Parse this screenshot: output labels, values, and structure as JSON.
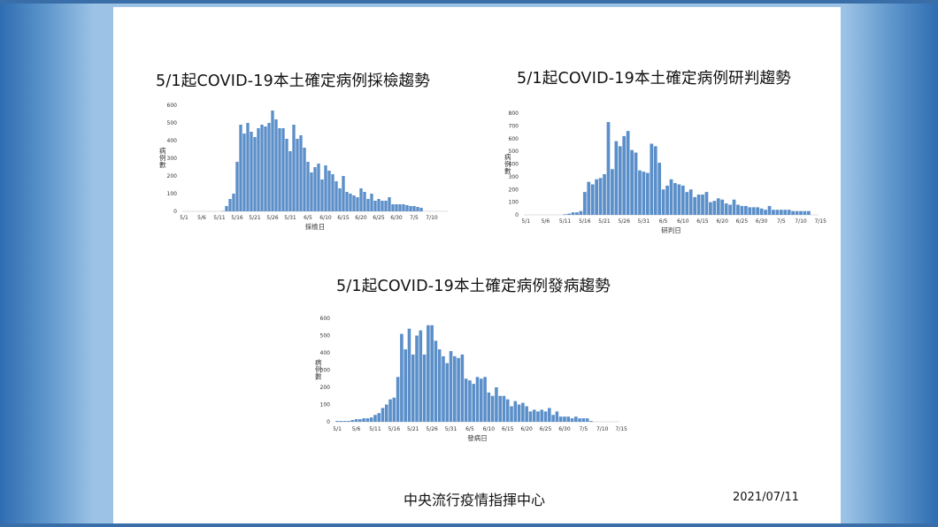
{
  "slide": {
    "organization": "中央流行疫情指揮中心",
    "date": "2021/07/11",
    "colors": {
      "bar": "#5b8fc9",
      "background": "#ffffff",
      "frame": "#9cc3e6"
    }
  },
  "chart_data": [
    {
      "type": "bar",
      "title": "5/1起COVID-19本土確定病例採檢趨勢",
      "xlabel": "採檢日",
      "ylabel": "病例數",
      "x_ticks": [
        "5/1",
        "5/6",
        "5/11",
        "5/16",
        "5/21",
        "5/26",
        "5/31",
        "6/5",
        "6/10",
        "6/15",
        "6/20",
        "6/25",
        "6/30",
        "7/5",
        "7/10"
      ],
      "y_ticks": [
        0,
        100,
        200,
        300,
        400,
        500,
        600
      ],
      "ylim": [
        0,
        600
      ],
      "x_start": "5/1",
      "values": [
        0,
        0,
        0,
        0,
        0,
        0,
        0,
        0,
        0,
        0,
        0,
        2,
        30,
        70,
        100,
        280,
        490,
        440,
        500,
        450,
        420,
        470,
        490,
        480,
        500,
        570,
        520,
        470,
        470,
        410,
        340,
        490,
        410,
        430,
        360,
        280,
        220,
        250,
        270,
        180,
        260,
        230,
        210,
        170,
        130,
        200,
        110,
        100,
        90,
        80,
        130,
        110,
        70,
        100,
        60,
        70,
        60,
        60,
        80,
        40,
        40,
        40,
        40,
        35,
        30,
        30,
        25,
        20
      ],
      "grid": false,
      "legend": "none"
    },
    {
      "type": "bar",
      "title": "5/1起COVID-19本土確定病例研判趨勢",
      "xlabel": "研判日",
      "ylabel": "病例數",
      "x_ticks": [
        "5/1",
        "5/6",
        "5/11",
        "5/16",
        "5/21",
        "5/26",
        "5/31",
        "6/5",
        "6/10",
        "6/15",
        "6/20",
        "6/25",
        "6/30",
        "7/5",
        "7/10",
        "7/15"
      ],
      "y_ticks": [
        0,
        100,
        200,
        300,
        400,
        500,
        600,
        700,
        800
      ],
      "ylim": [
        0,
        800
      ],
      "x_start": "5/1",
      "values": [
        0,
        0,
        0,
        0,
        0,
        0,
        0,
        0,
        0,
        0,
        5,
        10,
        20,
        20,
        30,
        180,
        260,
        240,
        280,
        290,
        320,
        730,
        360,
        580,
        540,
        620,
        660,
        510,
        490,
        350,
        340,
        330,
        560,
        540,
        410,
        200,
        230,
        280,
        250,
        240,
        230,
        180,
        200,
        140,
        160,
        160,
        180,
        100,
        110,
        130,
        120,
        90,
        80,
        120,
        80,
        70,
        70,
        60,
        60,
        60,
        50,
        40,
        70,
        40,
        40,
        40,
        40,
        40,
        30,
        30,
        30,
        30,
        30
      ],
      "grid": false,
      "legend": "none"
    },
    {
      "type": "bar",
      "title": "5/1起COVID-19本土確定病例發病趨勢",
      "xlabel": "發病日",
      "ylabel": "病例數",
      "x_ticks": [
        "5/1",
        "5/6",
        "5/11",
        "5/16",
        "5/21",
        "5/26",
        "5/31",
        "6/5",
        "6/10",
        "6/15",
        "6/20",
        "6/25",
        "6/30",
        "7/5",
        "7/10",
        "7/15"
      ],
      "y_ticks": [
        0,
        100,
        200,
        300,
        400,
        500,
        600
      ],
      "ylim": [
        0,
        600
      ],
      "x_start": "5/1",
      "values": [
        5,
        5,
        5,
        5,
        10,
        15,
        15,
        20,
        20,
        25,
        40,
        50,
        80,
        100,
        130,
        140,
        260,
        510,
        420,
        540,
        390,
        500,
        530,
        390,
        560,
        560,
        470,
        420,
        380,
        340,
        410,
        380,
        370,
        390,
        250,
        240,
        220,
        260,
        250,
        260,
        170,
        150,
        200,
        150,
        150,
        130,
        90,
        120,
        100,
        110,
        90,
        60,
        70,
        60,
        70,
        60,
        80,
        40,
        60,
        30,
        30,
        30,
        20,
        30,
        20,
        20,
        20,
        5
      ],
      "grid": false,
      "legend": "none"
    }
  ]
}
